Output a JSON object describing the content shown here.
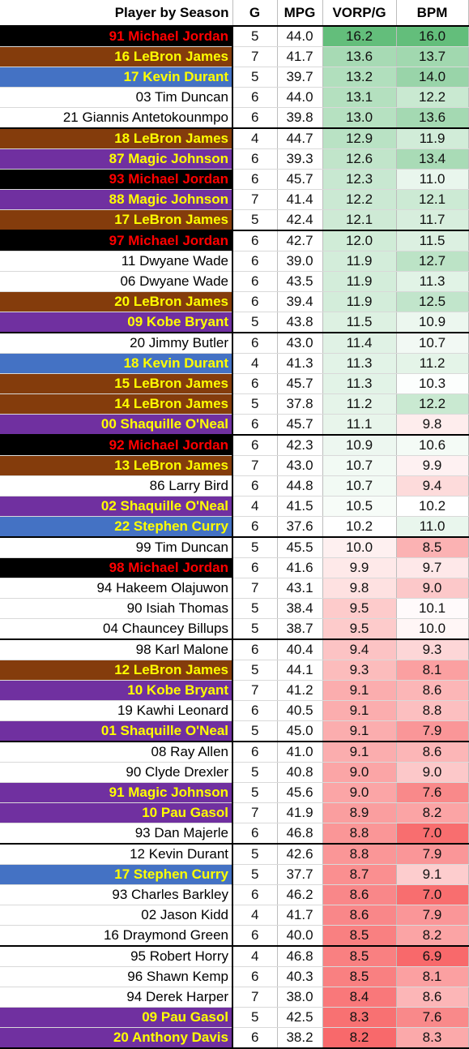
{
  "table": {
    "headers": {
      "player": "Player by Season",
      "g": "G",
      "mpg": "MPG",
      "vorp": "VORP/G",
      "bpm": "BPM"
    },
    "team_colors": {
      "bulls": {
        "bg": "#000000",
        "fg": "#ff0000"
      },
      "lakers_purple": {
        "bg": "#7030a0",
        "fg": "#ffff00"
      },
      "cavs_wine": {
        "bg": "#843c0c",
        "fg": "#ffff00"
      },
      "warriors_blue": {
        "bg": "#4472c4",
        "fg": "#ffff00"
      },
      "plain": {
        "bg": "#ffffff",
        "fg": "#000000"
      }
    },
    "rows": [
      {
        "player": "91 Michael Jordan",
        "g": "5",
        "mpg": "44.0",
        "vorp": "16.2",
        "bpm": "16.0",
        "team": "bulls"
      },
      {
        "player": "16 LeBron James",
        "g": "7",
        "mpg": "41.7",
        "vorp": "13.6",
        "bpm": "13.7",
        "team": "cavs_wine"
      },
      {
        "player": "17 Kevin Durant",
        "g": "5",
        "mpg": "39.7",
        "vorp": "13.2",
        "bpm": "14.0",
        "team": "warriors_blue"
      },
      {
        "player": "03 Tim Duncan",
        "g": "6",
        "mpg": "44.0",
        "vorp": "13.1",
        "bpm": "12.2",
        "team": "plain"
      },
      {
        "player": "21 Giannis Antetokounmpo",
        "g": "6",
        "mpg": "39.8",
        "vorp": "13.0",
        "bpm": "13.6",
        "team": "plain"
      },
      {
        "player": "18 LeBron James",
        "g": "4",
        "mpg": "44.7",
        "vorp": "12.9",
        "bpm": "11.9",
        "team": "cavs_wine"
      },
      {
        "player": "87 Magic Johnson",
        "g": "6",
        "mpg": "39.3",
        "vorp": "12.6",
        "bpm": "13.4",
        "team": "lakers_purple"
      },
      {
        "player": "93 Michael Jordan",
        "g": "6",
        "mpg": "45.7",
        "vorp": "12.3",
        "bpm": "11.0",
        "team": "bulls"
      },
      {
        "player": "88 Magic Johnson",
        "g": "7",
        "mpg": "41.4",
        "vorp": "12.2",
        "bpm": "12.1",
        "team": "lakers_purple"
      },
      {
        "player": "17 LeBron James",
        "g": "5",
        "mpg": "42.4",
        "vorp": "12.1",
        "bpm": "11.7",
        "team": "cavs_wine"
      },
      {
        "player": "97 Michael Jordan",
        "g": "6",
        "mpg": "42.7",
        "vorp": "12.0",
        "bpm": "11.5",
        "team": "bulls"
      },
      {
        "player": "11 Dwyane Wade",
        "g": "6",
        "mpg": "39.0",
        "vorp": "11.9",
        "bpm": "12.7",
        "team": "plain"
      },
      {
        "player": "06 Dwyane Wade",
        "g": "6",
        "mpg": "43.5",
        "vorp": "11.9",
        "bpm": "11.3",
        "team": "plain"
      },
      {
        "player": "20 LeBron James",
        "g": "6",
        "mpg": "39.4",
        "vorp": "11.9",
        "bpm": "12.5",
        "team": "cavs_wine"
      },
      {
        "player": "09 Kobe Bryant",
        "g": "5",
        "mpg": "43.8",
        "vorp": "11.5",
        "bpm": "10.9",
        "team": "lakers_purple"
      },
      {
        "player": "20 Jimmy Butler",
        "g": "6",
        "mpg": "43.0",
        "vorp": "11.4",
        "bpm": "10.7",
        "team": "plain"
      },
      {
        "player": "18 Kevin Durant",
        "g": "4",
        "mpg": "41.3",
        "vorp": "11.3",
        "bpm": "11.2",
        "team": "warriors_blue"
      },
      {
        "player": "15 LeBron James",
        "g": "6",
        "mpg": "45.7",
        "vorp": "11.3",
        "bpm": "10.3",
        "team": "cavs_wine"
      },
      {
        "player": "14 LeBron James",
        "g": "5",
        "mpg": "37.8",
        "vorp": "11.2",
        "bpm": "12.2",
        "team": "cavs_wine"
      },
      {
        "player": "00 Shaquille O'Neal",
        "g": "6",
        "mpg": "45.7",
        "vorp": "11.1",
        "bpm": "9.8",
        "team": "lakers_purple"
      },
      {
        "player": "92 Michael Jordan",
        "g": "6",
        "mpg": "42.3",
        "vorp": "10.9",
        "bpm": "10.6",
        "team": "bulls"
      },
      {
        "player": "13 LeBron James",
        "g": "7",
        "mpg": "43.0",
        "vorp": "10.7",
        "bpm": "9.9",
        "team": "cavs_wine"
      },
      {
        "player": "86 Larry Bird",
        "g": "6",
        "mpg": "44.8",
        "vorp": "10.7",
        "bpm": "9.4",
        "team": "plain"
      },
      {
        "player": "02 Shaquille O'Neal",
        "g": "4",
        "mpg": "41.5",
        "vorp": "10.5",
        "bpm": "10.2",
        "team": "lakers_purple"
      },
      {
        "player": "22 Stephen Curry",
        "g": "6",
        "mpg": "37.6",
        "vorp": "10.2",
        "bpm": "11.0",
        "team": "warriors_blue"
      },
      {
        "player": "99 Tim Duncan",
        "g": "5",
        "mpg": "45.5",
        "vorp": "10.0",
        "bpm": "8.5",
        "team": "plain"
      },
      {
        "player": "98 Michael Jordan",
        "g": "6",
        "mpg": "41.6",
        "vorp": "9.9",
        "bpm": "9.7",
        "team": "bulls"
      },
      {
        "player": "94 Hakeem Olajuwon",
        "g": "7",
        "mpg": "43.1",
        "vorp": "9.8",
        "bpm": "9.0",
        "team": "plain"
      },
      {
        "player": "90 Isiah Thomas",
        "g": "5",
        "mpg": "38.4",
        "vorp": "9.5",
        "bpm": "10.1",
        "team": "plain"
      },
      {
        "player": "04 Chauncey Billups",
        "g": "5",
        "mpg": "38.7",
        "vorp": "9.5",
        "bpm": "10.0",
        "team": "plain"
      },
      {
        "player": "98 Karl Malone",
        "g": "6",
        "mpg": "40.4",
        "vorp": "9.4",
        "bpm": "9.3",
        "team": "plain"
      },
      {
        "player": "12 LeBron James",
        "g": "5",
        "mpg": "44.1",
        "vorp": "9.3",
        "bpm": "8.1",
        "team": "cavs_wine"
      },
      {
        "player": "10 Kobe Bryant",
        "g": "7",
        "mpg": "41.2",
        "vorp": "9.1",
        "bpm": "8.6",
        "team": "lakers_purple"
      },
      {
        "player": "19 Kawhi Leonard",
        "g": "6",
        "mpg": "40.5",
        "vorp": "9.1",
        "bpm": "8.8",
        "team": "plain"
      },
      {
        "player": "01 Shaquille O'Neal",
        "g": "5",
        "mpg": "45.0",
        "vorp": "9.1",
        "bpm": "7.9",
        "team": "lakers_purple"
      },
      {
        "player": "08 Ray Allen",
        "g": "6",
        "mpg": "41.0",
        "vorp": "9.1",
        "bpm": "8.6",
        "team": "plain"
      },
      {
        "player": "90 Clyde Drexler",
        "g": "5",
        "mpg": "40.8",
        "vorp": "9.0",
        "bpm": "9.0",
        "team": "plain"
      },
      {
        "player": "91 Magic Johnson",
        "g": "5",
        "mpg": "45.6",
        "vorp": "9.0",
        "bpm": "7.6",
        "team": "lakers_purple"
      },
      {
        "player": "10 Pau Gasol",
        "g": "7",
        "mpg": "41.9",
        "vorp": "8.9",
        "bpm": "8.2",
        "team": "lakers_purple"
      },
      {
        "player": "93 Dan Majerle",
        "g": "6",
        "mpg": "46.8",
        "vorp": "8.8",
        "bpm": "7.0",
        "team": "plain"
      },
      {
        "player": "12 Kevin Durant",
        "g": "5",
        "mpg": "42.6",
        "vorp": "8.8",
        "bpm": "7.9",
        "team": "plain"
      },
      {
        "player": "17 Stephen Curry",
        "g": "5",
        "mpg": "37.7",
        "vorp": "8.7",
        "bpm": "9.1",
        "team": "warriors_blue"
      },
      {
        "player": "93 Charles Barkley",
        "g": "6",
        "mpg": "46.2",
        "vorp": "8.6",
        "bpm": "7.0",
        "team": "plain"
      },
      {
        "player": "02 Jason Kidd",
        "g": "4",
        "mpg": "41.7",
        "vorp": "8.6",
        "bpm": "7.9",
        "team": "plain"
      },
      {
        "player": "16 Draymond Green",
        "g": "6",
        "mpg": "40.0",
        "vorp": "8.5",
        "bpm": "8.2",
        "team": "plain"
      },
      {
        "player": "95 Robert Horry",
        "g": "4",
        "mpg": "46.8",
        "vorp": "8.5",
        "bpm": "6.9",
        "team": "plain"
      },
      {
        "player": "96 Shawn Kemp",
        "g": "6",
        "mpg": "40.3",
        "vorp": "8.5",
        "bpm": "8.1",
        "team": "plain"
      },
      {
        "player": "94 Derek Harper",
        "g": "7",
        "mpg": "38.0",
        "vorp": "8.4",
        "bpm": "8.6",
        "team": "plain"
      },
      {
        "player": "09 Pau Gasol",
        "g": "5",
        "mpg": "42.5",
        "vorp": "8.3",
        "bpm": "7.6",
        "team": "lakers_purple"
      },
      {
        "player": "20 Anthony Davis",
        "g": "6",
        "mpg": "38.2",
        "vorp": "8.2",
        "bpm": "8.3",
        "team": "lakers_purple"
      }
    ],
    "heatmap_colors": {
      "high": "#63be7b",
      "mid": "#ffffff",
      "low": "#f8696b"
    },
    "heatmap_midpoints": {
      "vorp": 10.2,
      "bpm": 10.2
    }
  }
}
